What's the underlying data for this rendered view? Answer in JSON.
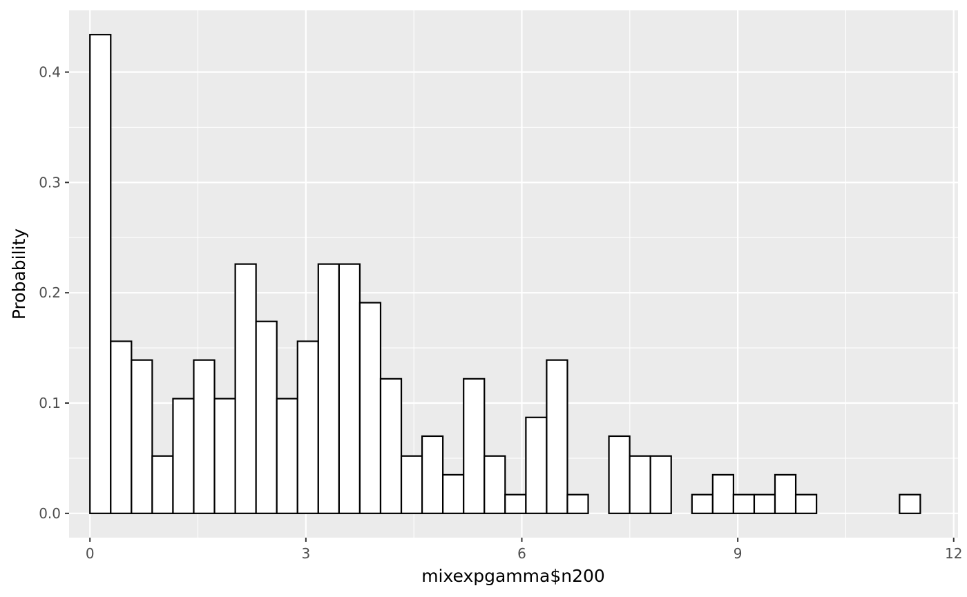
{
  "chart_data": {
    "type": "bar",
    "title": "",
    "xlabel": "mixexpgamma$n200",
    "ylabel": "Probability",
    "xlim": [
      -0.29,
      12.06
    ],
    "ylim": [
      -0.022,
      0.456
    ],
    "grid": true,
    "legend": "none",
    "x_ticks": [
      0,
      3,
      6,
      9,
      12
    ],
    "x_tick_labels": [
      "0",
      "3",
      "6",
      "9",
      "12"
    ],
    "y_ticks": [
      0.0,
      0.1,
      0.2,
      0.3,
      0.4
    ],
    "y_tick_labels": [
      "0.0",
      "0.1",
      "0.2",
      "0.3",
      "0.4"
    ],
    "bins": {
      "start": 0,
      "width": 0.2884,
      "values": [
        0.434,
        0.156,
        0.139,
        0.052,
        0.104,
        0.139,
        0.104,
        0.226,
        0.174,
        0.104,
        0.156,
        0.226,
        0.226,
        0.191,
        0.122,
        0.052,
        0.07,
        0.035,
        0.122,
        0.052,
        0.017,
        0.087,
        0.139,
        0.017,
        0.0,
        0.07,
        0.052,
        0.052,
        0.0,
        0.017,
        0.035,
        0.017,
        0.017,
        0.035,
        0.017,
        0.0,
        0.0,
        0.0,
        0.0,
        0.017
      ]
    },
    "colors": {
      "panel_background": "#ebebeb",
      "grid_major": "#ffffff",
      "bar_fill": "#ffffff",
      "bar_outline": "#000000",
      "tick_text": "#4d4d4d",
      "axis_title_text": "#000000"
    }
  }
}
